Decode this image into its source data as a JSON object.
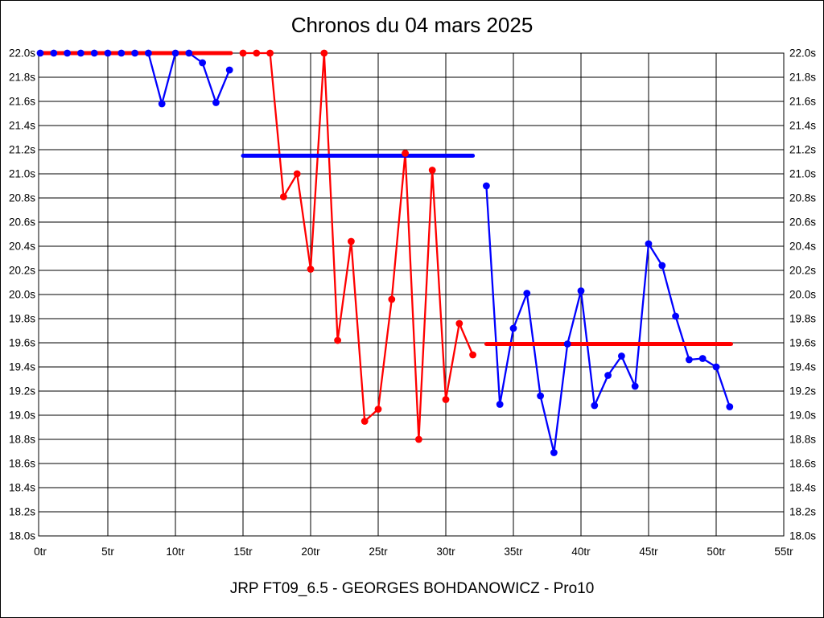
{
  "page": {
    "title": "Chronos du 04 mars 2025",
    "footer": "JRP FT09_6.5 - GEORGES BOHDANOWICZ - Pro10"
  },
  "colors": {
    "red": "#FF0000",
    "blue": "#0000FF",
    "grid": "#000000",
    "text": "#000000",
    "background": "#FFFFFF"
  },
  "chart_data": {
    "type": "line",
    "title": "Chronos du 04 mars 2025",
    "subtitle": "",
    "grid": true,
    "legend_position": "none",
    "x_axis": {
      "unit": "tr",
      "min": 0,
      "max": 55,
      "step": 5,
      "tick_labels": [
        "0tr",
        "5tr",
        "10tr",
        "15tr",
        "20tr",
        "25tr",
        "30tr",
        "35tr",
        "40tr",
        "45tr",
        "50tr",
        "55tr"
      ]
    },
    "y_axis": {
      "unit": "s",
      "min": 18.0,
      "max": 22.0,
      "step": 0.2,
      "tick_labels": [
        "22.0s",
        "21.8s",
        "21.6s",
        "21.4s",
        "21.2s",
        "21.0s",
        "20.8s",
        "20.6s",
        "20.4s",
        "20.2s",
        "20.0s",
        "19.8s",
        "19.6s",
        "19.4s",
        "19.2s",
        "19.0s",
        "18.8s",
        "18.6s",
        "18.4s",
        "18.2s",
        "18.0s"
      ],
      "tick_labels_right": [
        "22.0s",
        "21.8s",
        "21.6s",
        "21.4s",
        "21.2s",
        "21.0s",
        "20.8s",
        "20.6s",
        "20.4s",
        "20.2s",
        "20.0s",
        "19.8s",
        "19.6s",
        "19.4s",
        "19.2s",
        "19.0s",
        "18.8s",
        "18.6s",
        "18.4s",
        "18.2s",
        "18.0s"
      ]
    },
    "series": [
      {
        "name": "stint-1-blue",
        "color": "#0000FF",
        "start_lap": 0,
        "times": [
          22.0,
          22.0,
          22.0,
          22.0,
          22.0,
          22.0,
          22.0,
          22.0,
          22.0,
          21.58,
          22.0,
          22.0,
          21.92,
          21.59,
          21.86
        ]
      },
      {
        "name": "stint-2-red",
        "color": "#FF0000",
        "start_lap": 15,
        "times": [
          22.0,
          22.0,
          22.0,
          20.81,
          21.0,
          20.21,
          22.0,
          19.62,
          20.44,
          18.95,
          19.05,
          19.96,
          21.17,
          18.8,
          21.03,
          19.13,
          19.76,
          19.5
        ]
      },
      {
        "name": "stint-3-blue",
        "color": "#0000FF",
        "start_lap": 33,
        "times": [
          20.9,
          19.09,
          19.72,
          20.01,
          19.16,
          18.69,
          19.59,
          20.03,
          19.08,
          19.33,
          19.49,
          19.24,
          20.42,
          20.24,
          19.82,
          19.46,
          19.47,
          19.4,
          19.07
        ]
      }
    ],
    "average_lines": [
      {
        "name": "average-line-stint-1",
        "color": "#FF0000",
        "value": 22.0,
        "lap_start": -0.1,
        "lap_end": 14.1
      },
      {
        "name": "average-line-stint-2",
        "color": "#0000FF",
        "value": 21.15,
        "lap_start": 15.0,
        "lap_end": 32.0
      },
      {
        "name": "average-line-stint-3",
        "color": "#FF0000",
        "value": 19.59,
        "lap_start": 33.0,
        "lap_end": 51.1
      }
    ]
  }
}
